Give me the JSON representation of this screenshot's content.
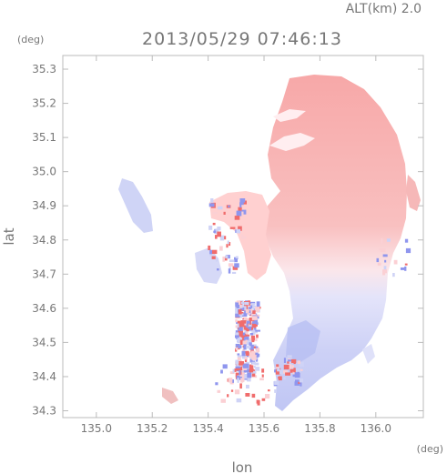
{
  "header": {
    "altitude_label": "ALT(km) 2.0",
    "timestamp": "2013/05/29 07:46:13"
  },
  "chart_data": {
    "type": "heatmap",
    "title": "2013/05/29 07:46:13",
    "xlabel": "lon",
    "ylabel": "lat",
    "x_unit": "(deg)",
    "y_unit": "(deg)",
    "xlim": [
      134.88,
      136.17
    ],
    "ylim": [
      34.28,
      35.34
    ],
    "x_ticks": [
      135.0,
      135.2,
      135.4,
      135.6,
      135.8,
      136.0
    ],
    "x_tick_labels": [
      "135.0",
      "135.2",
      "135.4",
      "135.6",
      "135.8",
      "136.0"
    ],
    "y_ticks": [
      34.3,
      34.4,
      34.5,
      34.6,
      34.7,
      34.8,
      34.9,
      35.0,
      35.1,
      35.2,
      35.3
    ],
    "y_tick_labels": [
      "34.3",
      "34.4",
      "34.5",
      "34.6",
      "34.7",
      "34.8",
      "34.9",
      "35.0",
      "35.1",
      "35.2",
      "35.3"
    ],
    "grid": false,
    "colors": {
      "positive": "#f08a8a",
      "negative": "#9ea6ee",
      "frame": "#bbbbbb",
      "text": "#777777"
    }
  }
}
